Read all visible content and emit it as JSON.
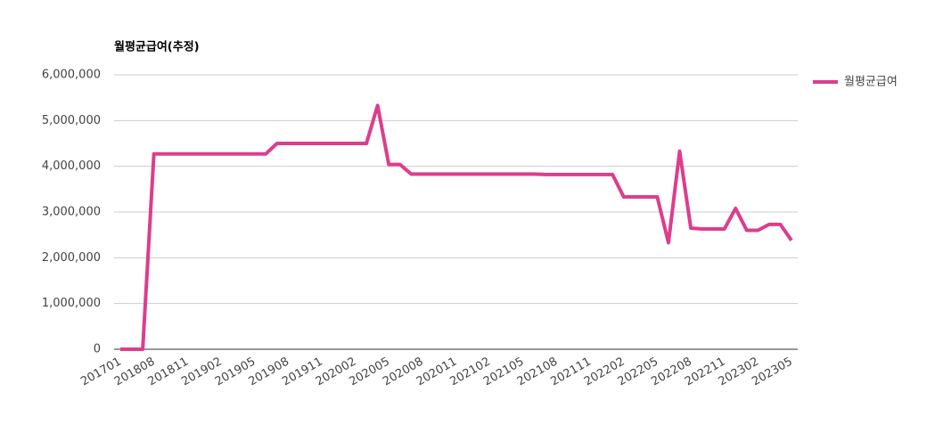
{
  "chart_data": {
    "type": "line",
    "title": "월평균급여(추정)",
    "categories": [
      "201701",
      null,
      null,
      "201808",
      null,
      null,
      "201811",
      null,
      null,
      "201902",
      null,
      null,
      "201905",
      null,
      null,
      "201908",
      null,
      null,
      "201911",
      null,
      null,
      "202002",
      null,
      null,
      "202005",
      null,
      null,
      "202008",
      null,
      null,
      "202011",
      null,
      null,
      "202102",
      null,
      null,
      "202105",
      null,
      null,
      "202108",
      null,
      null,
      "202111",
      null,
      null,
      "202202",
      null,
      null,
      "202205",
      null,
      null,
      "202208",
      null,
      null,
      "202211",
      null,
      null,
      "202302",
      null,
      null,
      "202305"
    ],
    "series": [
      {
        "name": "월평균급여",
        "color": "#dd3d8d",
        "values": [
          0,
          0,
          0,
          4270000,
          4270000,
          4270000,
          4270000,
          4270000,
          4270000,
          4270000,
          4270000,
          4270000,
          4270000,
          4270000,
          4500000,
          4500000,
          4500000,
          4500000,
          4500000,
          4500000,
          4500000,
          4500000,
          4500000,
          5330000,
          4040000,
          4040000,
          3830000,
          3830000,
          3830000,
          3830000,
          3830000,
          3830000,
          3830000,
          3830000,
          3830000,
          3830000,
          3830000,
          3830000,
          3820000,
          3820000,
          3820000,
          3820000,
          3820000,
          3820000,
          3820000,
          3330000,
          3330000,
          3330000,
          3330000,
          2330000,
          4330000,
          2650000,
          2630000,
          2630000,
          2630000,
          3080000,
          2600000,
          2600000,
          2730000,
          2730000,
          2380000
        ]
      }
    ],
    "ylim": [
      0,
      6000000
    ],
    "yticks": [
      {
        "value": 0,
        "label": "0"
      },
      {
        "value": 1000000,
        "label": "1,000,000"
      },
      {
        "value": 2000000,
        "label": "2,000,000"
      },
      {
        "value": 3000000,
        "label": "3,000,000"
      },
      {
        "value": 4000000,
        "label": "4,000,000"
      },
      {
        "value": 5000000,
        "label": "5,000,000"
      },
      {
        "value": 6000000,
        "label": "6,000,000"
      }
    ],
    "grid": true,
    "legend": "right"
  }
}
